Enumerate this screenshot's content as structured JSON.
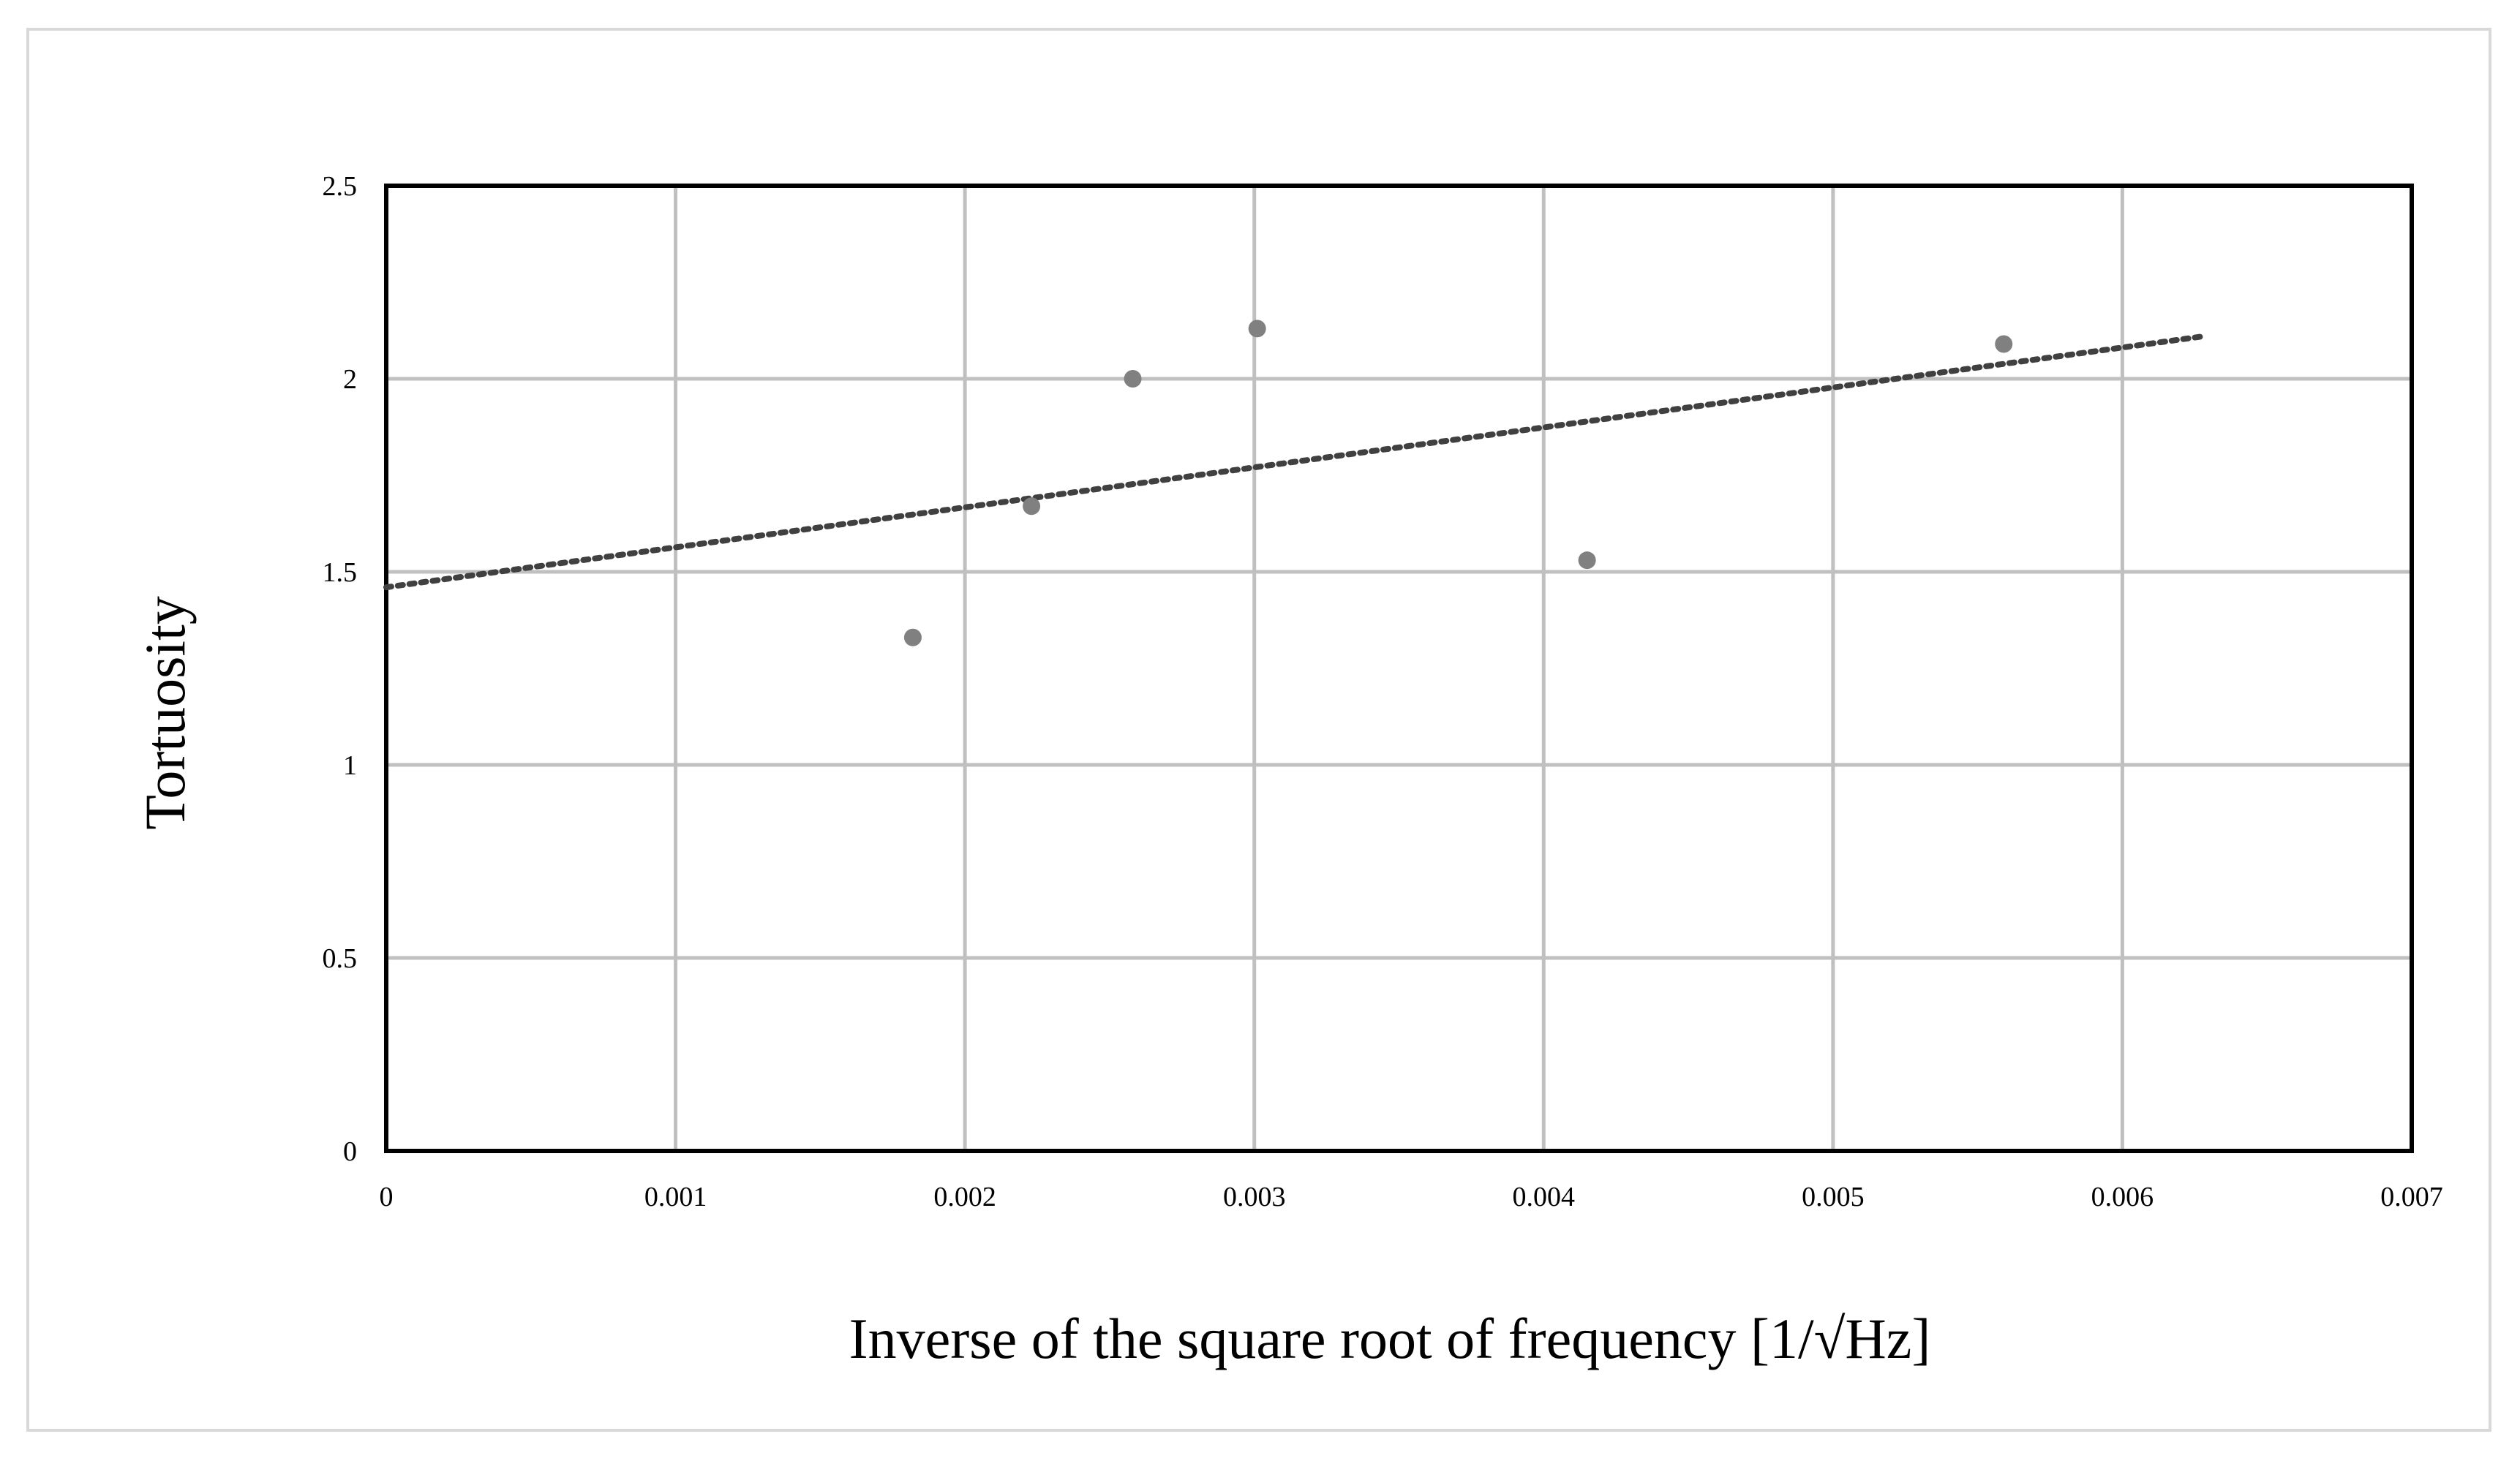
{
  "chart_data": {
    "type": "scatter",
    "title": "",
    "xlabel": "Inverse of the square root of frequency [1/√Hz]",
    "ylabel": "Tortuosity",
    "xlim": [
      0,
      0.007
    ],
    "ylim": [
      0,
      2.5
    ],
    "x_ticks": [
      0,
      0.001,
      0.002,
      0.003,
      0.004,
      0.005,
      0.006,
      0.007
    ],
    "x_tick_labels": [
      "0",
      "0.001",
      "0.002",
      "0.003",
      "0.004",
      "0.005",
      "0.006",
      "0.007"
    ],
    "y_ticks": [
      0,
      0.5,
      1,
      1.5,
      2,
      2.5
    ],
    "y_tick_labels": [
      "0",
      "0.5",
      "1",
      "1.5",
      "2",
      "2.5"
    ],
    "grid": true,
    "legend": "none",
    "series": [
      {
        "points": [
          {
            "x": 0.00182,
            "y": 1.33
          },
          {
            "x": 0.00223,
            "y": 1.67
          },
          {
            "x": 0.00258,
            "y": 2.0
          },
          {
            "x": 0.00301,
            "y": 2.13
          },
          {
            "x": 0.00415,
            "y": 1.53
          },
          {
            "x": 0.00559,
            "y": 2.09
          }
        ],
        "color": "#808080"
      }
    ],
    "trendline": {
      "style": "dotted",
      "color": "#404040",
      "x": [
        0,
        0.00628
      ],
      "y": [
        1.46,
        2.11
      ]
    },
    "colors": {
      "grid": "#c0c0c0",
      "plot_border": "#000000",
      "frame_border": "#d9d9d9"
    }
  }
}
